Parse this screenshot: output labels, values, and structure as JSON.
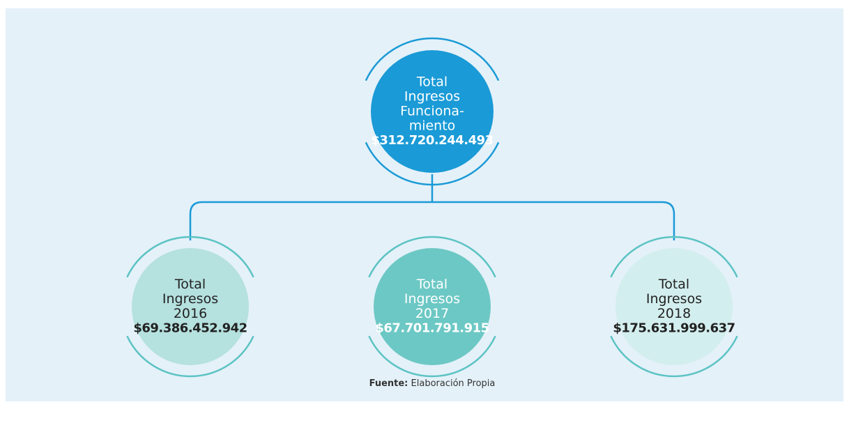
{
  "nodes": [
    {
      "lines": [
        "Total",
        "Ingresos",
        "Funciona-",
        "miento"
      ],
      "value": "$312.720.244.493"
    },
    {
      "lines": [
        "Total",
        "Ingresos",
        "2016"
      ],
      "value": "$69.386.452.942"
    },
    {
      "lines": [
        "Total",
        "Ingresos",
        "2017"
      ],
      "value": "$67.701.791.915"
    },
    {
      "lines": [
        "Total",
        "Ingresos",
        "2018"
      ],
      "value": "$175.631.999.637"
    }
  ],
  "source": {
    "label": "Fuente:",
    "text": "Elaboración Propia"
  }
}
